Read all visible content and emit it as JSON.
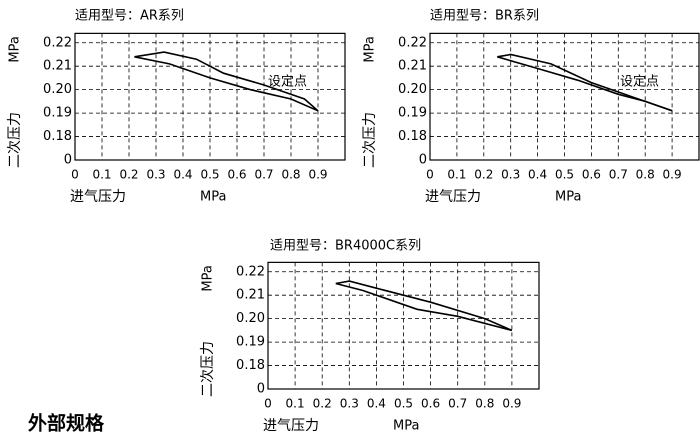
{
  "chart_data": [
    {
      "type": "line",
      "title": "适用型号：AR系列",
      "y_label": "MPa",
      "y_label_2": "二次压力",
      "x_label": "进气压力",
      "x_label_2": "MPa",
      "annotations": [
        "设定点"
      ],
      "xlim": [
        0,
        1.0
      ],
      "xticks": [
        0,
        0.1,
        0.2,
        0.3,
        0.4,
        0.5,
        0.6,
        0.7,
        0.8,
        0.9
      ],
      "ylim": [
        0,
        0.224
      ],
      "yticks": [
        0,
        0.18,
        0.19,
        {
          "value": 0.2,
          "label": "0.20"
        },
        0.21,
        0.22
      ],
      "grid": true,
      "series": [
        {
          "color": "#000000",
          "x": [
            0.22,
            0.33,
            0.45,
            0.55,
            0.7,
            0.85,
            0.9
          ],
          "values": [
            0.214,
            0.216,
            0.213,
            0.207,
            0.202,
            0.196,
            0.191
          ]
        },
        {
          "color": "#000000",
          "x": [
            0.22,
            0.35,
            0.5,
            0.65,
            0.8,
            0.9
          ],
          "values": [
            0.214,
            0.211,
            0.205,
            0.2,
            0.196,
            0.191
          ]
        }
      ]
    },
    {
      "type": "line",
      "title": "适用型号：BR系列",
      "y_label": "MPa",
      "y_label_2": "二次压力",
      "x_label": "进气压力",
      "x_label_2": "MPa",
      "annotations": [
        "设定点"
      ],
      "xlim": [
        0,
        1.0
      ],
      "xticks": [
        0,
        0.1,
        0.2,
        0.3,
        0.4,
        0.5,
        0.6,
        0.7,
        0.8,
        0.9
      ],
      "ylim": [
        0,
        0.224
      ],
      "yticks": [
        0,
        0.18,
        0.19,
        {
          "value": 0.2,
          "label": "0.20"
        },
        0.21,
        0.22
      ],
      "grid": true,
      "series": [
        {
          "color": "#000000",
          "x": [
            0.25,
            0.3,
            0.45,
            0.6,
            0.7,
            0.9
          ],
          "values": [
            0.214,
            0.215,
            0.211,
            0.203,
            0.199,
            0.191
          ]
        },
        {
          "color": "#000000",
          "x": [
            0.25,
            0.4,
            0.55,
            0.7,
            0.8,
            0.9
          ],
          "values": [
            0.214,
            0.209,
            0.204,
            0.198,
            0.195,
            0.191
          ]
        }
      ]
    },
    {
      "type": "line",
      "title": "适用型号：BR4000C系列",
      "y_label": "MPa",
      "y_label_2": "二次压力",
      "x_label": "进气压力",
      "x_label_2": "MPa",
      "xlim": [
        0,
        1.0
      ],
      "xticks": [
        0,
        0.1,
        0.2,
        0.3,
        0.4,
        0.5,
        0.6,
        0.7,
        0.8,
        0.9
      ],
      "ylim": [
        0,
        0.224
      ],
      "yticks": [
        0,
        0.18,
        0.19,
        {
          "value": 0.2,
          "label": "0.20"
        },
        0.21,
        0.22
      ],
      "grid": true,
      "series": [
        {
          "color": "#000000",
          "x": [
            0.25,
            0.3,
            0.4,
            0.6,
            0.8,
            0.9
          ],
          "values": [
            0.215,
            0.216,
            0.213,
            0.207,
            0.2,
            0.195
          ]
        },
        {
          "color": "#000000",
          "x": [
            0.25,
            0.35,
            0.55,
            0.7,
            0.9
          ],
          "values": [
            0.215,
            0.212,
            0.204,
            0.201,
            0.195
          ]
        }
      ]
    }
  ],
  "heading": "外部规格"
}
